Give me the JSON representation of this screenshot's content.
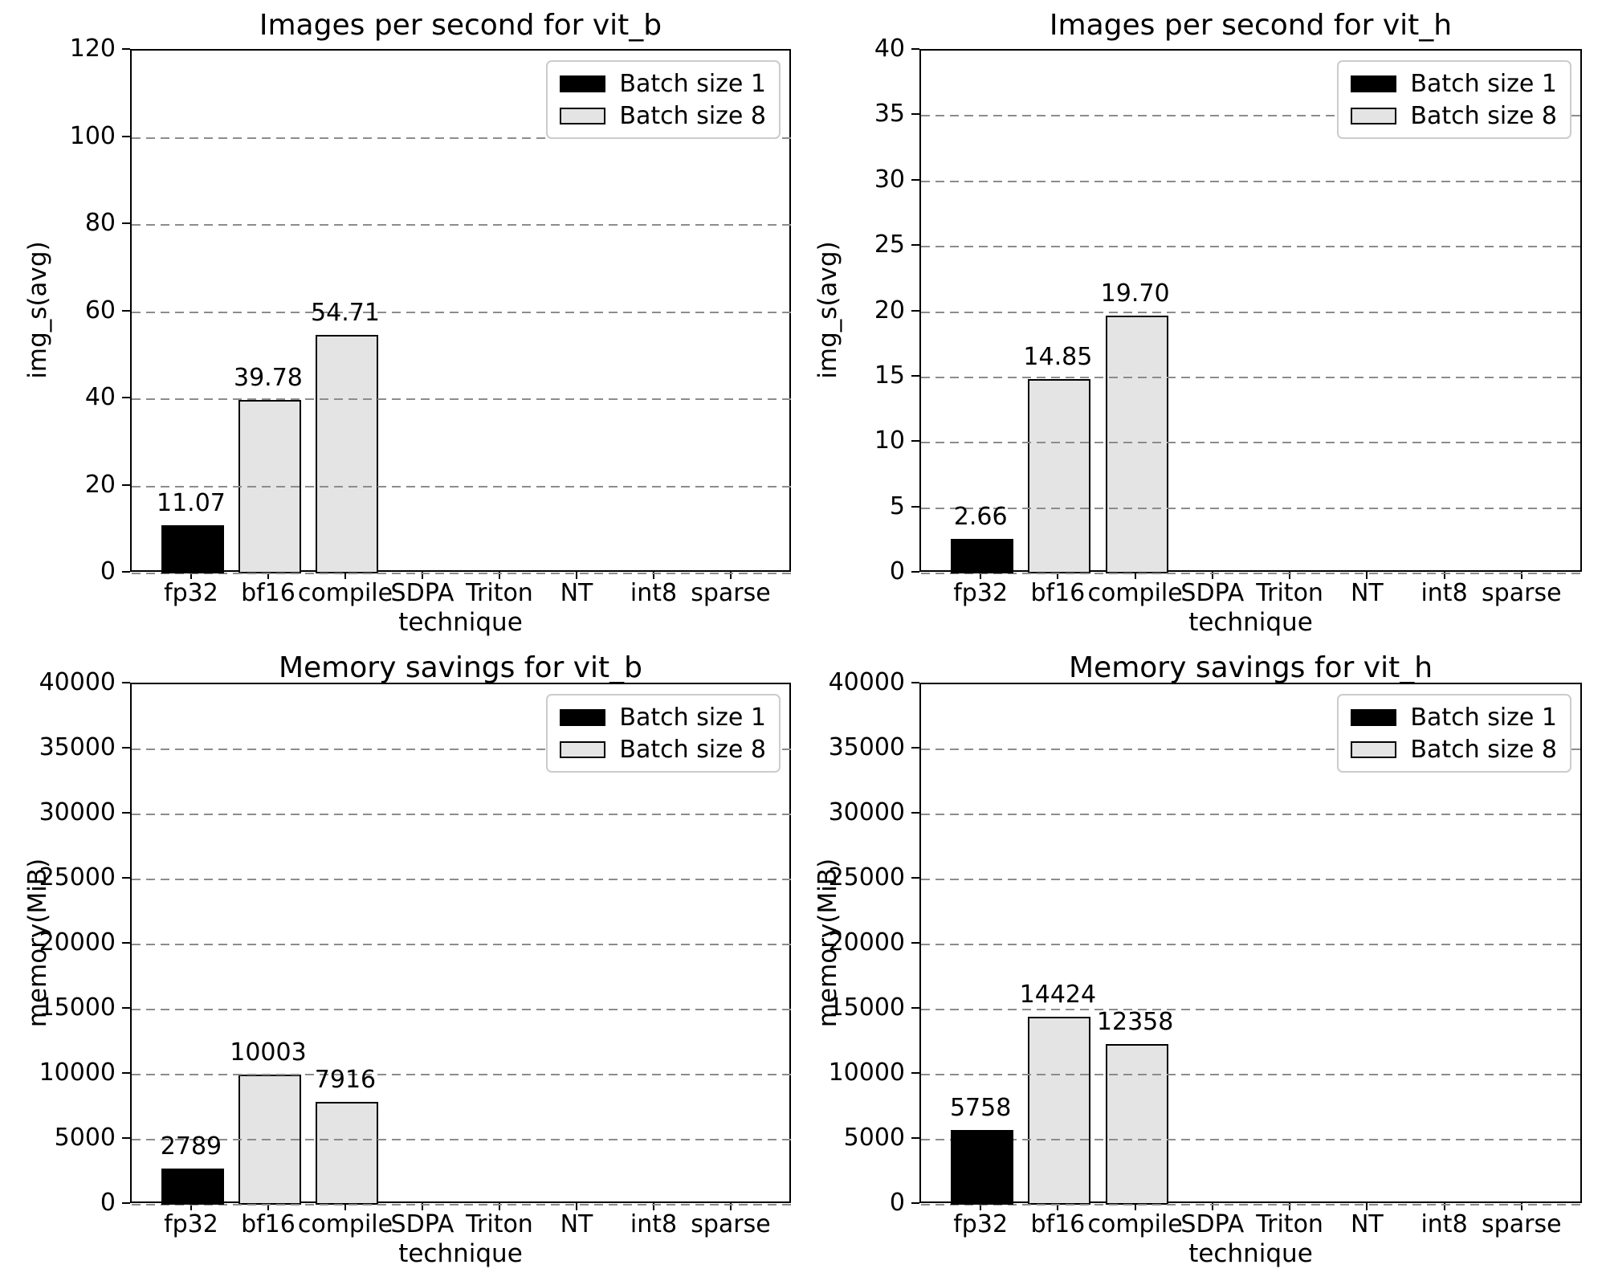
{
  "figure": {
    "background": "#ffffff"
  },
  "legend": {
    "position": "upper-right",
    "entries": [
      {
        "label": "Batch size 1",
        "color": "#000000"
      },
      {
        "label": "Batch size 8",
        "color": "#e4e4e4"
      }
    ]
  },
  "chart_data": [
    {
      "key": "images-per-second-vit_b",
      "type": "bar",
      "title": "Images per second for vit_b",
      "xlabel": "technique",
      "ylabel": "img_s(avg)",
      "ylim": [
        0,
        120
      ],
      "ytick_step": 20,
      "grid": "dashed-horizontal",
      "legend_position": "upper-right",
      "label_format": "fixed2",
      "categories": [
        "fp32",
        "bf16",
        "compile",
        "SDPA",
        "Triton",
        "NT",
        "int8",
        "sparse"
      ],
      "series": [
        {
          "name": "Batch size 1",
          "color": "#000000",
          "values": [
            11.07,
            null,
            null,
            null,
            null,
            null,
            null,
            null
          ]
        },
        {
          "name": "Batch size 8",
          "color": "#e4e4e4",
          "values": [
            null,
            39.78,
            54.71,
            null,
            null,
            null,
            null,
            null
          ]
        }
      ]
    },
    {
      "key": "images-per-second-vit_h",
      "type": "bar",
      "title": "Images per second for vit_h",
      "xlabel": "technique",
      "ylabel": "img_s(avg)",
      "ylim": [
        0,
        40
      ],
      "ytick_step": 5,
      "grid": "dashed-horizontal",
      "legend_position": "upper-right",
      "label_format": "fixed2",
      "categories": [
        "fp32",
        "bf16",
        "compile",
        "SDPA",
        "Triton",
        "NT",
        "int8",
        "sparse"
      ],
      "series": [
        {
          "name": "Batch size 1",
          "color": "#000000",
          "values": [
            2.66,
            null,
            null,
            null,
            null,
            null,
            null,
            null
          ]
        },
        {
          "name": "Batch size 8",
          "color": "#e4e4e4",
          "values": [
            null,
            14.85,
            19.7,
            null,
            null,
            null,
            null,
            null
          ]
        }
      ]
    },
    {
      "key": "memory-savings-vit_b",
      "type": "bar",
      "title": "Memory savings for vit_b",
      "xlabel": "technique",
      "ylabel": "memory(MiB)",
      "ylim": [
        0,
        40000
      ],
      "ytick_step": 5000,
      "grid": "dashed-horizontal",
      "legend_position": "upper-right",
      "label_format": "int",
      "categories": [
        "fp32",
        "bf16",
        "compile",
        "SDPA",
        "Triton",
        "NT",
        "int8",
        "sparse"
      ],
      "series": [
        {
          "name": "Batch size 1",
          "color": "#000000",
          "values": [
            2789,
            null,
            null,
            null,
            null,
            null,
            null,
            null
          ]
        },
        {
          "name": "Batch size 8",
          "color": "#e4e4e4",
          "values": [
            null,
            10003,
            7916,
            null,
            null,
            null,
            null,
            null
          ]
        }
      ]
    },
    {
      "key": "memory-savings-vit_h",
      "type": "bar",
      "title": "Memory savings for vit_h",
      "xlabel": "technique",
      "ylabel": "memory(MiB)",
      "ylim": [
        0,
        40000
      ],
      "ytick_step": 5000,
      "grid": "dashed-horizontal",
      "legend_position": "upper-right",
      "label_format": "int",
      "categories": [
        "fp32",
        "bf16",
        "compile",
        "SDPA",
        "Triton",
        "NT",
        "int8",
        "sparse"
      ],
      "series": [
        {
          "name": "Batch size 1",
          "color": "#000000",
          "values": [
            5758,
            null,
            null,
            null,
            null,
            null,
            null,
            null
          ]
        },
        {
          "name": "Batch size 8",
          "color": "#e4e4e4",
          "values": [
            null,
            14424,
            12358,
            null,
            null,
            null,
            null,
            null
          ]
        }
      ]
    }
  ]
}
